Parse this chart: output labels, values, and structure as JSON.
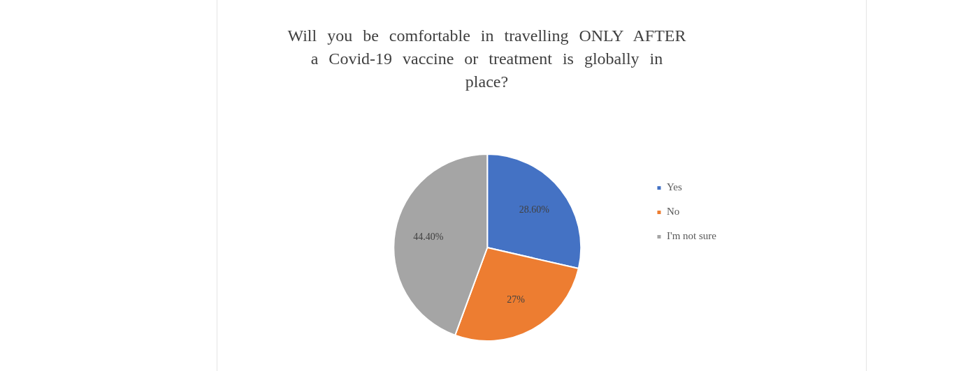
{
  "chart_data": {
    "type": "pie",
    "title": "Will you be comfortable in travelling ONLY AFTER a Covid-19 vaccine or treatment is globally in place?",
    "categories": [
      "Yes",
      "No",
      "I'm not sure"
    ],
    "values": [
      28.6,
      27,
      44.4
    ],
    "colors": [
      "#4472c4",
      "#ed7d31",
      "#a5a5a5"
    ],
    "value_labels": [
      "28.60%",
      "27%",
      "44.40%"
    ],
    "legend": "right"
  }
}
